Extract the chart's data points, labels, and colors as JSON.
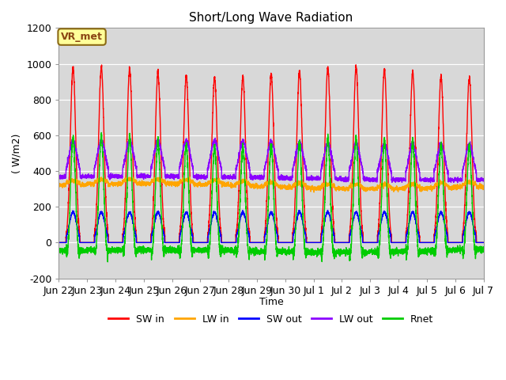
{
  "title": "Short/Long Wave Radiation",
  "ylabel": "( W/m2)",
  "xlabel": "Time",
  "ylim": [
    -200,
    1200
  ],
  "background_color": "#ffffff",
  "plot_bg_color": "#d8d8d8",
  "grid_color": "#c0c0c0",
  "annotation_text": "VR_met",
  "annotation_bg": "#ffff99",
  "annotation_border": "#8B6914",
  "series": {
    "SW_in": {
      "color": "#ff0000",
      "label": "SW in",
      "lw": 1.0
    },
    "LW_in": {
      "color": "#ffa500",
      "label": "LW in",
      "lw": 1.0
    },
    "SW_out": {
      "color": "#0000ff",
      "label": "SW out",
      "lw": 1.0
    },
    "LW_out": {
      "color": "#8B00FF",
      "label": "LW out",
      "lw": 1.0
    },
    "Rnet": {
      "color": "#00cc00",
      "label": "Rnet",
      "lw": 1.0
    }
  },
  "xtick_labels": [
    "Jun 22",
    "Jun 23",
    "Jun 24",
    "Jun 25",
    "Jun 26",
    "Jun 27",
    "Jun 28",
    "Jun 29",
    "Jun 30",
    "Jul 1",
    "Jul 2",
    "Jul 3",
    "Jul 4",
    "Jul 5",
    "Jul 6",
    "Jul 7"
  ],
  "ytick_labels": [
    -200,
    0,
    200,
    400,
    600,
    800,
    1000,
    1200
  ],
  "n_days": 15,
  "pts_per_day": 288,
  "figsize": [
    6.4,
    4.8
  ],
  "dpi": 100
}
